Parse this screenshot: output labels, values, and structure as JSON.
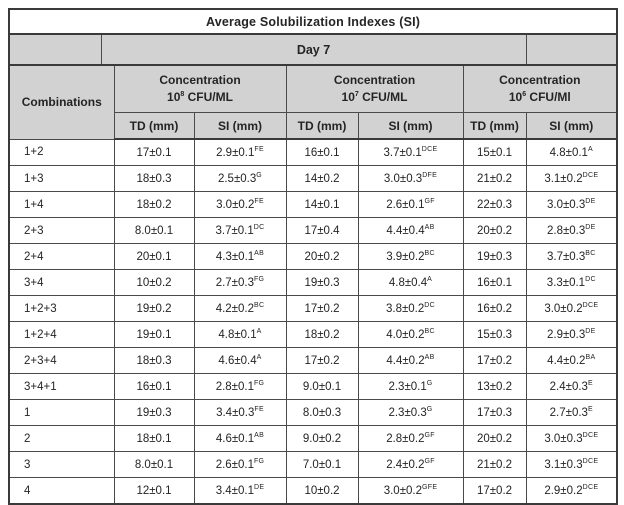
{
  "title": "Average Solubilization Indexes (SI)",
  "day_header": "Day 7",
  "combinations_header": "Combinations",
  "sub_headers": {
    "td": "TD (mm)",
    "si": "SI (mm)"
  },
  "groups": [
    {
      "line1": "Concentration",
      "base": "10",
      "exp": "8",
      "unit": "CFU/ML"
    },
    {
      "line1": "Concentration",
      "base": "10",
      "exp": "7",
      "unit": "CFU/ML"
    },
    {
      "line1": "Concentration",
      "base": "10",
      "exp": "6",
      "unit": "CFU/Ml"
    }
  ],
  "rows": [
    {
      "label": "1+2",
      "cells": [
        {
          "td": "17±0.1",
          "si": "2.9±0.1",
          "sup": "FE"
        },
        {
          "td": "16±0.1",
          "si": "3.7±0.1",
          "sup": "DCE"
        },
        {
          "td": "15±0.1",
          "si": "4.8±0.1",
          "sup": "A"
        }
      ]
    },
    {
      "label": "1+3",
      "cells": [
        {
          "td": "18±0.3",
          "si": "2.5±0.3",
          "sup": "G"
        },
        {
          "td": "14±0.2",
          "si": "3.0±0.3",
          "sup": "DFE"
        },
        {
          "td": "21±0.2",
          "si": "3.1±0.2",
          "sup": "DCE"
        }
      ]
    },
    {
      "label": "1+4",
      "cells": [
        {
          "td": "18±0.2",
          "si": "3.0±0.2",
          "sup": "FE"
        },
        {
          "td": "14±0.1",
          "si": "2.6±0.1",
          "sup": "GF"
        },
        {
          "td": "22±0.3",
          "si": "3.0±0.3",
          "sup": "DE"
        }
      ]
    },
    {
      "label": "2+3",
      "cells": [
        {
          "td": "8.0±0.1",
          "si": "3.7±0.1",
          "sup": "DC"
        },
        {
          "td": "17±0.4",
          "si": "4.4±0.4",
          "sup": "AB"
        },
        {
          "td": "20±0.2",
          "si": "2.8±0.3",
          "sup": "DE"
        }
      ]
    },
    {
      "label": "2+4",
      "cells": [
        {
          "td": "20±0.1",
          "si": "4.3±0.1",
          "sup": "AB"
        },
        {
          "td": "20±0.2",
          "si": "3.9±0.2",
          "sup": "BC"
        },
        {
          "td": "19±0.3",
          "si": "3.7±0.3",
          "sup": "BC"
        }
      ]
    },
    {
      "label": "3+4",
      "cells": [
        {
          "td": "10±0.2",
          "si": "2.7±0.3",
          "sup": "FG"
        },
        {
          "td": "19±0.3",
          "si": "4.8±0.4",
          "sup": "A"
        },
        {
          "td": "16±0.1",
          "si": "3.3±0.1",
          "sup": "DC"
        }
      ]
    },
    {
      "label": "1+2+3",
      "cells": [
        {
          "td": "19±0.2",
          "si": "4.2±0.2",
          "sup": "BC"
        },
        {
          "td": "17±0.2",
          "si": "3.8±0.2",
          "sup": "DC"
        },
        {
          "td": "16±0.2",
          "si": "3.0±0.2",
          "sup": "DCE"
        }
      ]
    },
    {
      "label": "1+2+4",
      "cells": [
        {
          "td": "19±0.1",
          "si": "4.8±0.1",
          "sup": "A"
        },
        {
          "td": "18±0.2",
          "si": "4.0±0.2",
          "sup": "BC"
        },
        {
          "td": "15±0.3",
          "si": "2.9±0.3",
          "sup": "DE"
        }
      ]
    },
    {
      "label": "2+3+4",
      "cells": [
        {
          "td": "18±0.3",
          "si": "4.6±0.4",
          "sup": "A"
        },
        {
          "td": "17±0.2",
          "si": "4.4±0.2",
          "sup": "AB"
        },
        {
          "td": "17±0.2",
          "si": "4.4±0.2",
          "sup": "BA"
        }
      ]
    },
    {
      "label": "3+4+1",
      "cells": [
        {
          "td": "16±0.1",
          "si": "2.8±0.1",
          "sup": "FG"
        },
        {
          "td": "9.0±0.1",
          "si": "2.3±0.1",
          "sup": "G"
        },
        {
          "td": "13±0.2",
          "si": "2.4±0.3",
          "sup": "E"
        }
      ]
    },
    {
      "label": "1",
      "cells": [
        {
          "td": "19±0.3",
          "si": "3.4±0.3",
          "sup": "FE"
        },
        {
          "td": "8.0±0.3",
          "si": "2.3±0.3",
          "sup": "G"
        },
        {
          "td": "17±0.3",
          "si": "2.7±0.3",
          "sup": "E"
        }
      ]
    },
    {
      "label": "2",
      "cells": [
        {
          "td": "18±0.1",
          "si": "4.6±0.1",
          "sup": "AB"
        },
        {
          "td": "9.0±0.2",
          "si": "2.8±0.2",
          "sup": "GF"
        },
        {
          "td": "20±0.2",
          "si": "3.0±0.3",
          "sup": "DCE"
        }
      ]
    },
    {
      "label": "3",
      "cells": [
        {
          "td": "8.0±0.1",
          "si": "2.6±0.1",
          "sup": "FG"
        },
        {
          "td": "7.0±0.1",
          "si": "2.4±0.2",
          "sup": "GF"
        },
        {
          "td": "21±0.2",
          "si": "3.1±0.3",
          "sup": "DCE"
        }
      ]
    },
    {
      "label": "4",
      "cells": [
        {
          "td": "12±0.1",
          "si": "3.4±0.1",
          "sup": "DE"
        },
        {
          "td": "10±0.2",
          "si": "3.0±0.2",
          "sup": "GFE"
        },
        {
          "td": "17±0.2",
          "si": "2.9±0.2",
          "sup": "DCE"
        }
      ]
    }
  ],
  "colors": {
    "header_gray": "#d2d2d2",
    "border": "#3a3a3a",
    "text": "#242424"
  }
}
